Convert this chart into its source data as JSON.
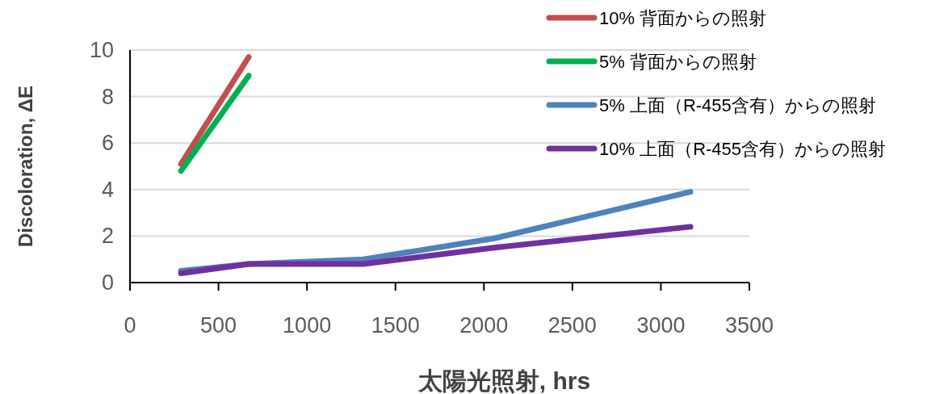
{
  "chart_data": {
    "type": "line",
    "xlabel": "太陽光照射, hrs",
    "ylabel": "Discoloration, ΔE",
    "xlim": [
      0,
      3500
    ],
    "xticks": [
      0,
      500,
      1000,
      1500,
      2000,
      2500,
      3000,
      3500
    ],
    "ylim": [
      0,
      10
    ],
    "yticks": [
      0,
      2,
      4,
      6,
      8,
      10
    ],
    "grid": "y",
    "legend": "top right",
    "line_style": "solid",
    "marker": "none",
    "series": [
      {
        "name": "10% 背面からの照射",
        "color": "#c0504d",
        "x": [
          288,
          671
        ],
        "values": [
          5.1,
          9.7
        ]
      },
      {
        "name": "5% 背面からの照射",
        "color": "#00b050",
        "x": [
          288,
          671
        ],
        "values": [
          4.8,
          8.9
        ]
      },
      {
        "name": "5% 上面（R-455含有）からの照射",
        "color": "#4f81bd",
        "x": [
          288,
          671,
          1319,
          2058,
          3167
        ],
        "values": [
          0.5,
          0.8,
          1.0,
          1.9,
          3.9
        ]
      },
      {
        "name": "10% 上面（R-455含有）からの照射",
        "color": "#7030a0",
        "x": [
          288,
          671,
          1319,
          2058,
          3167
        ],
        "values": [
          0.4,
          0.8,
          0.8,
          1.5,
          2.4
        ]
      }
    ]
  }
}
